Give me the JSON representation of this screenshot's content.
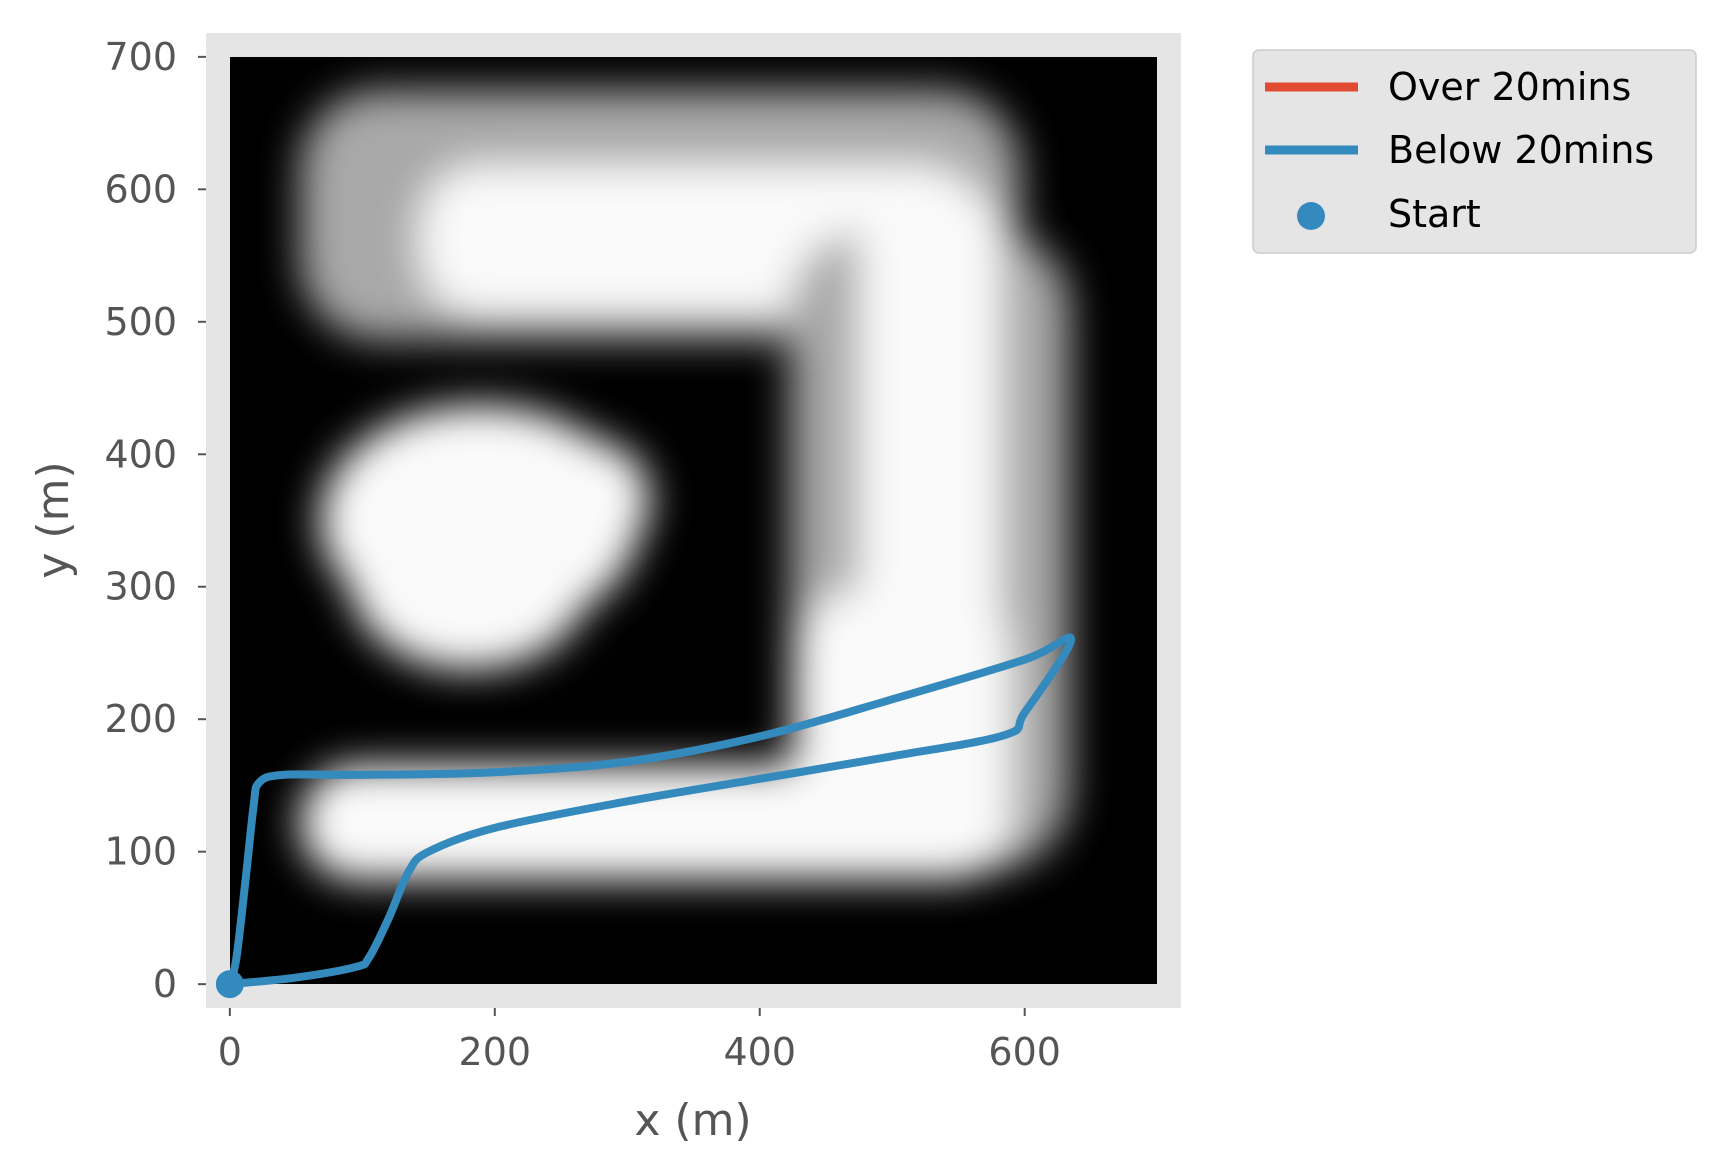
{
  "colors": {
    "axes_bg": "#e5e5e5",
    "tick_text": "#555555",
    "over_color": "#E24A33",
    "below_color": "#348ABD",
    "legend_bg": "#e5e5e5",
    "legend_border": "#cccccc"
  },
  "chart_data": {
    "type": "line",
    "title": "",
    "xlabel": "x (m)",
    "ylabel": "y (m)",
    "xlim": [
      -18,
      718
    ],
    "ylim": [
      718,
      -18
    ],
    "y_inverted": true,
    "grid": false,
    "legend_position": "outside upper right",
    "background": "grayscale density map over 0–700 m × 0–700 m (white regions: top band, right band, bottom band, blob near x≈190,y≈400)",
    "x_ticks": [
      {
        "value": 0,
        "label": "0"
      },
      {
        "value": 200,
        "label": "200"
      },
      {
        "value": 400,
        "label": "400"
      },
      {
        "value": 600,
        "label": "600"
      }
    ],
    "y_ticks": [
      {
        "value": 0,
        "label": "0"
      },
      {
        "value": 100,
        "label": "100"
      },
      {
        "value": 200,
        "label": "200"
      },
      {
        "value": 300,
        "label": "300"
      },
      {
        "value": 400,
        "label": "400"
      },
      {
        "value": 500,
        "label": "500"
      },
      {
        "value": 600,
        "label": "600"
      },
      {
        "value": 700,
        "label": "700"
      }
    ],
    "series": [
      {
        "name": "Over 20mins",
        "style": "line",
        "x": [],
        "y": []
      },
      {
        "name": "Below 20mins",
        "style": "line",
        "x": [
          0,
          50,
          95,
          105,
          120,
          135,
          150,
          200,
          300,
          400,
          500,
          585,
          600,
          635,
          600,
          500,
          400,
          300,
          200,
          100,
          40,
          22,
          18,
          12,
          5,
          0
        ],
        "y": [
          0,
          5,
          13,
          20,
          50,
          85,
          100,
          118,
          138,
          155,
          172,
          188,
          205,
          260,
          245,
          215,
          187,
          168,
          160,
          158,
          158,
          152,
          135,
          80,
          20,
          0
        ]
      },
      {
        "name": "Start",
        "style": "marker",
        "x": [
          0
        ],
        "y": [
          0
        ]
      }
    ]
  }
}
